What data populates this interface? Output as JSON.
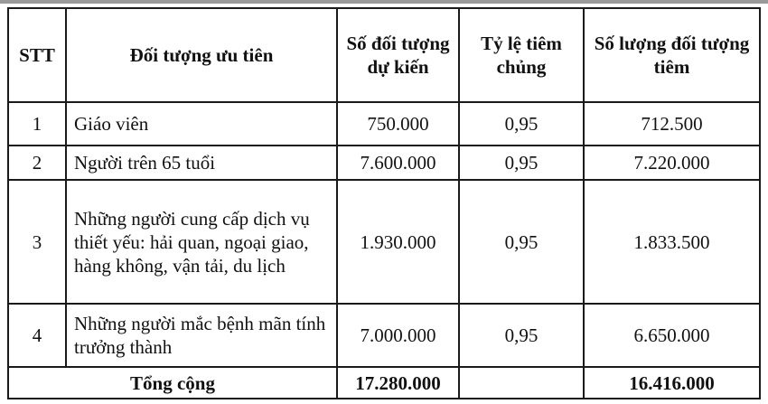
{
  "table": {
    "headers": [
      "STT",
      "Đối tượng ưu tiên",
      "Số đối tượng dự kiến",
      "Tỷ lệ tiêm chủng",
      "Số lượng đối tượng tiêm"
    ],
    "rows": [
      {
        "stt": "1",
        "group": "Giáo viên",
        "expected": "750.000",
        "rate": "0,95",
        "vaccinated": "712.500"
      },
      {
        "stt": "2",
        "group": "Người trên 65 tuổi",
        "expected": "7.600.000",
        "rate": "0,95",
        "vaccinated": "7.220.000"
      },
      {
        "stt": "3",
        "group": "Những người cung cấp dịch vụ thiết yếu: hải quan, ngoại giao, hàng không, vận tải, du lịch",
        "expected": "1.930.000",
        "rate": "0,95",
        "vaccinated": "1.833.500"
      },
      {
        "stt": "4",
        "group": "Những người mắc bệnh mãn tính trưởng thành",
        "expected": "7.000.000",
        "rate": "0,95",
        "vaccinated": "6.650.000"
      }
    ],
    "total": {
      "label": "Tổng cộng",
      "expected": "17.280.000",
      "vaccinated": "16.416.000"
    }
  }
}
